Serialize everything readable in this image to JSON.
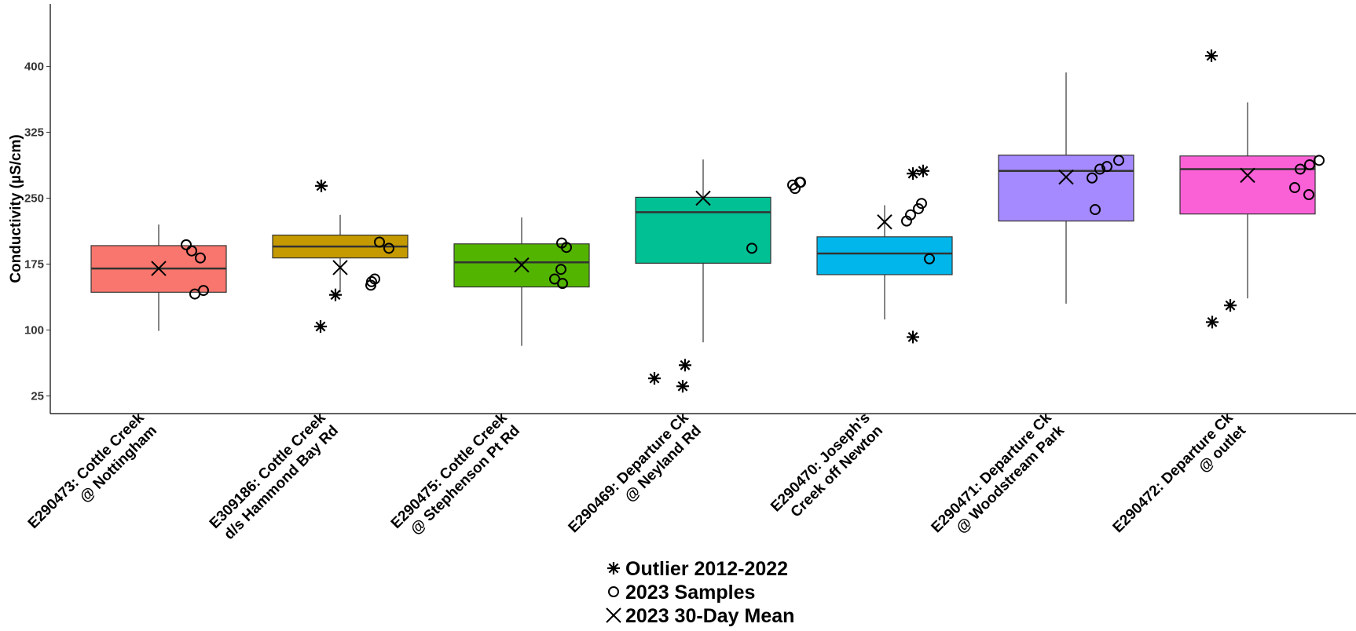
{
  "chart_data": {
    "type": "boxplot",
    "ylabel": "Conductivity (µS/cm)",
    "ylim": [
      5,
      470
    ],
    "yticks": [
      25,
      100,
      175,
      250,
      325,
      400
    ],
    "grid": false,
    "legend_position": "bottom",
    "legend": [
      {
        "label": "Outlier 2012-2022",
        "symbol": "asterisk"
      },
      {
        "label": "2023 Samples",
        "symbol": "circle"
      },
      {
        "label": "2023 30-Day Mean",
        "symbol": "cross"
      }
    ],
    "categories": [
      {
        "label_lines": [
          "E290473: Cottle Creek",
          "@ Nottingham"
        ],
        "color": "#F8766D",
        "box": {
          "whisker_low": 99,
          "q1": 143,
          "median": 170,
          "q3": 196,
          "whisker_high": 220
        },
        "mean": 170,
        "outliers": [],
        "samples": [
          197,
          190,
          182,
          141,
          145
        ]
      },
      {
        "label_lines": [
          "E309186: Cottle Creek",
          "d/s Hammond Bay Rd"
        ],
        "color": "#C49A00",
        "box": {
          "whisker_low": 143,
          "q1": 182,
          "median": 195,
          "q3": 208,
          "whisker_high": 231
        },
        "mean": 171,
        "outliers": [
          264,
          140,
          104
        ],
        "samples": [
          200,
          193,
          151,
          155,
          158
        ]
      },
      {
        "label_lines": [
          "E290475: Cottle Creek",
          "@ Stephenson Pt Rd"
        ],
        "color": "#53B400",
        "box": {
          "whisker_low": 82,
          "q1": 149,
          "median": 177,
          "q3": 198,
          "whisker_high": 228
        },
        "mean": 174,
        "outliers": [],
        "samples": [
          199,
          194,
          169,
          158,
          153
        ]
      },
      {
        "label_lines": [
          "E290469: Departure Ck",
          "@ Neyland Rd"
        ],
        "color": "#00C094",
        "box": {
          "whisker_low": 86,
          "q1": 176,
          "median": 234,
          "q3": 251,
          "whisker_high": 294
        },
        "mean": 250,
        "outliers": [
          45,
          60,
          36
        ],
        "samples": [
          265,
          268,
          268,
          261,
          193
        ]
      },
      {
        "label_lines": [
          "E290470: Joseph's",
          "Creek off Newton"
        ],
        "color": "#00B6EB",
        "box": {
          "whisker_low": 112,
          "q1": 163,
          "median": 187,
          "q3": 206,
          "whisker_high": 242
        },
        "mean": 223,
        "outliers": [
          278,
          281,
          92
        ],
        "samples": [
          244,
          238,
          231,
          224,
          181
        ]
      },
      {
        "label_lines": [
          "E290471: Departure Ck",
          "@ Woodstream Park"
        ],
        "color": "#A58AFF",
        "box": {
          "whisker_low": 130,
          "q1": 224,
          "median": 281,
          "q3": 299,
          "whisker_high": 393
        },
        "mean": 274,
        "outliers": [],
        "samples": [
          293,
          286,
          283,
          273,
          237
        ]
      },
      {
        "label_lines": [
          "E290472: Departure Ck",
          "@ outlet"
        ],
        "color": "#FB61D7",
        "box": {
          "whisker_low": 136,
          "q1": 232,
          "median": 283,
          "q3": 298,
          "whisker_high": 359
        },
        "mean": 276,
        "outliers": [
          412,
          128,
          109
        ],
        "samples": [
          293,
          288,
          283,
          262,
          254
        ]
      }
    ]
  }
}
